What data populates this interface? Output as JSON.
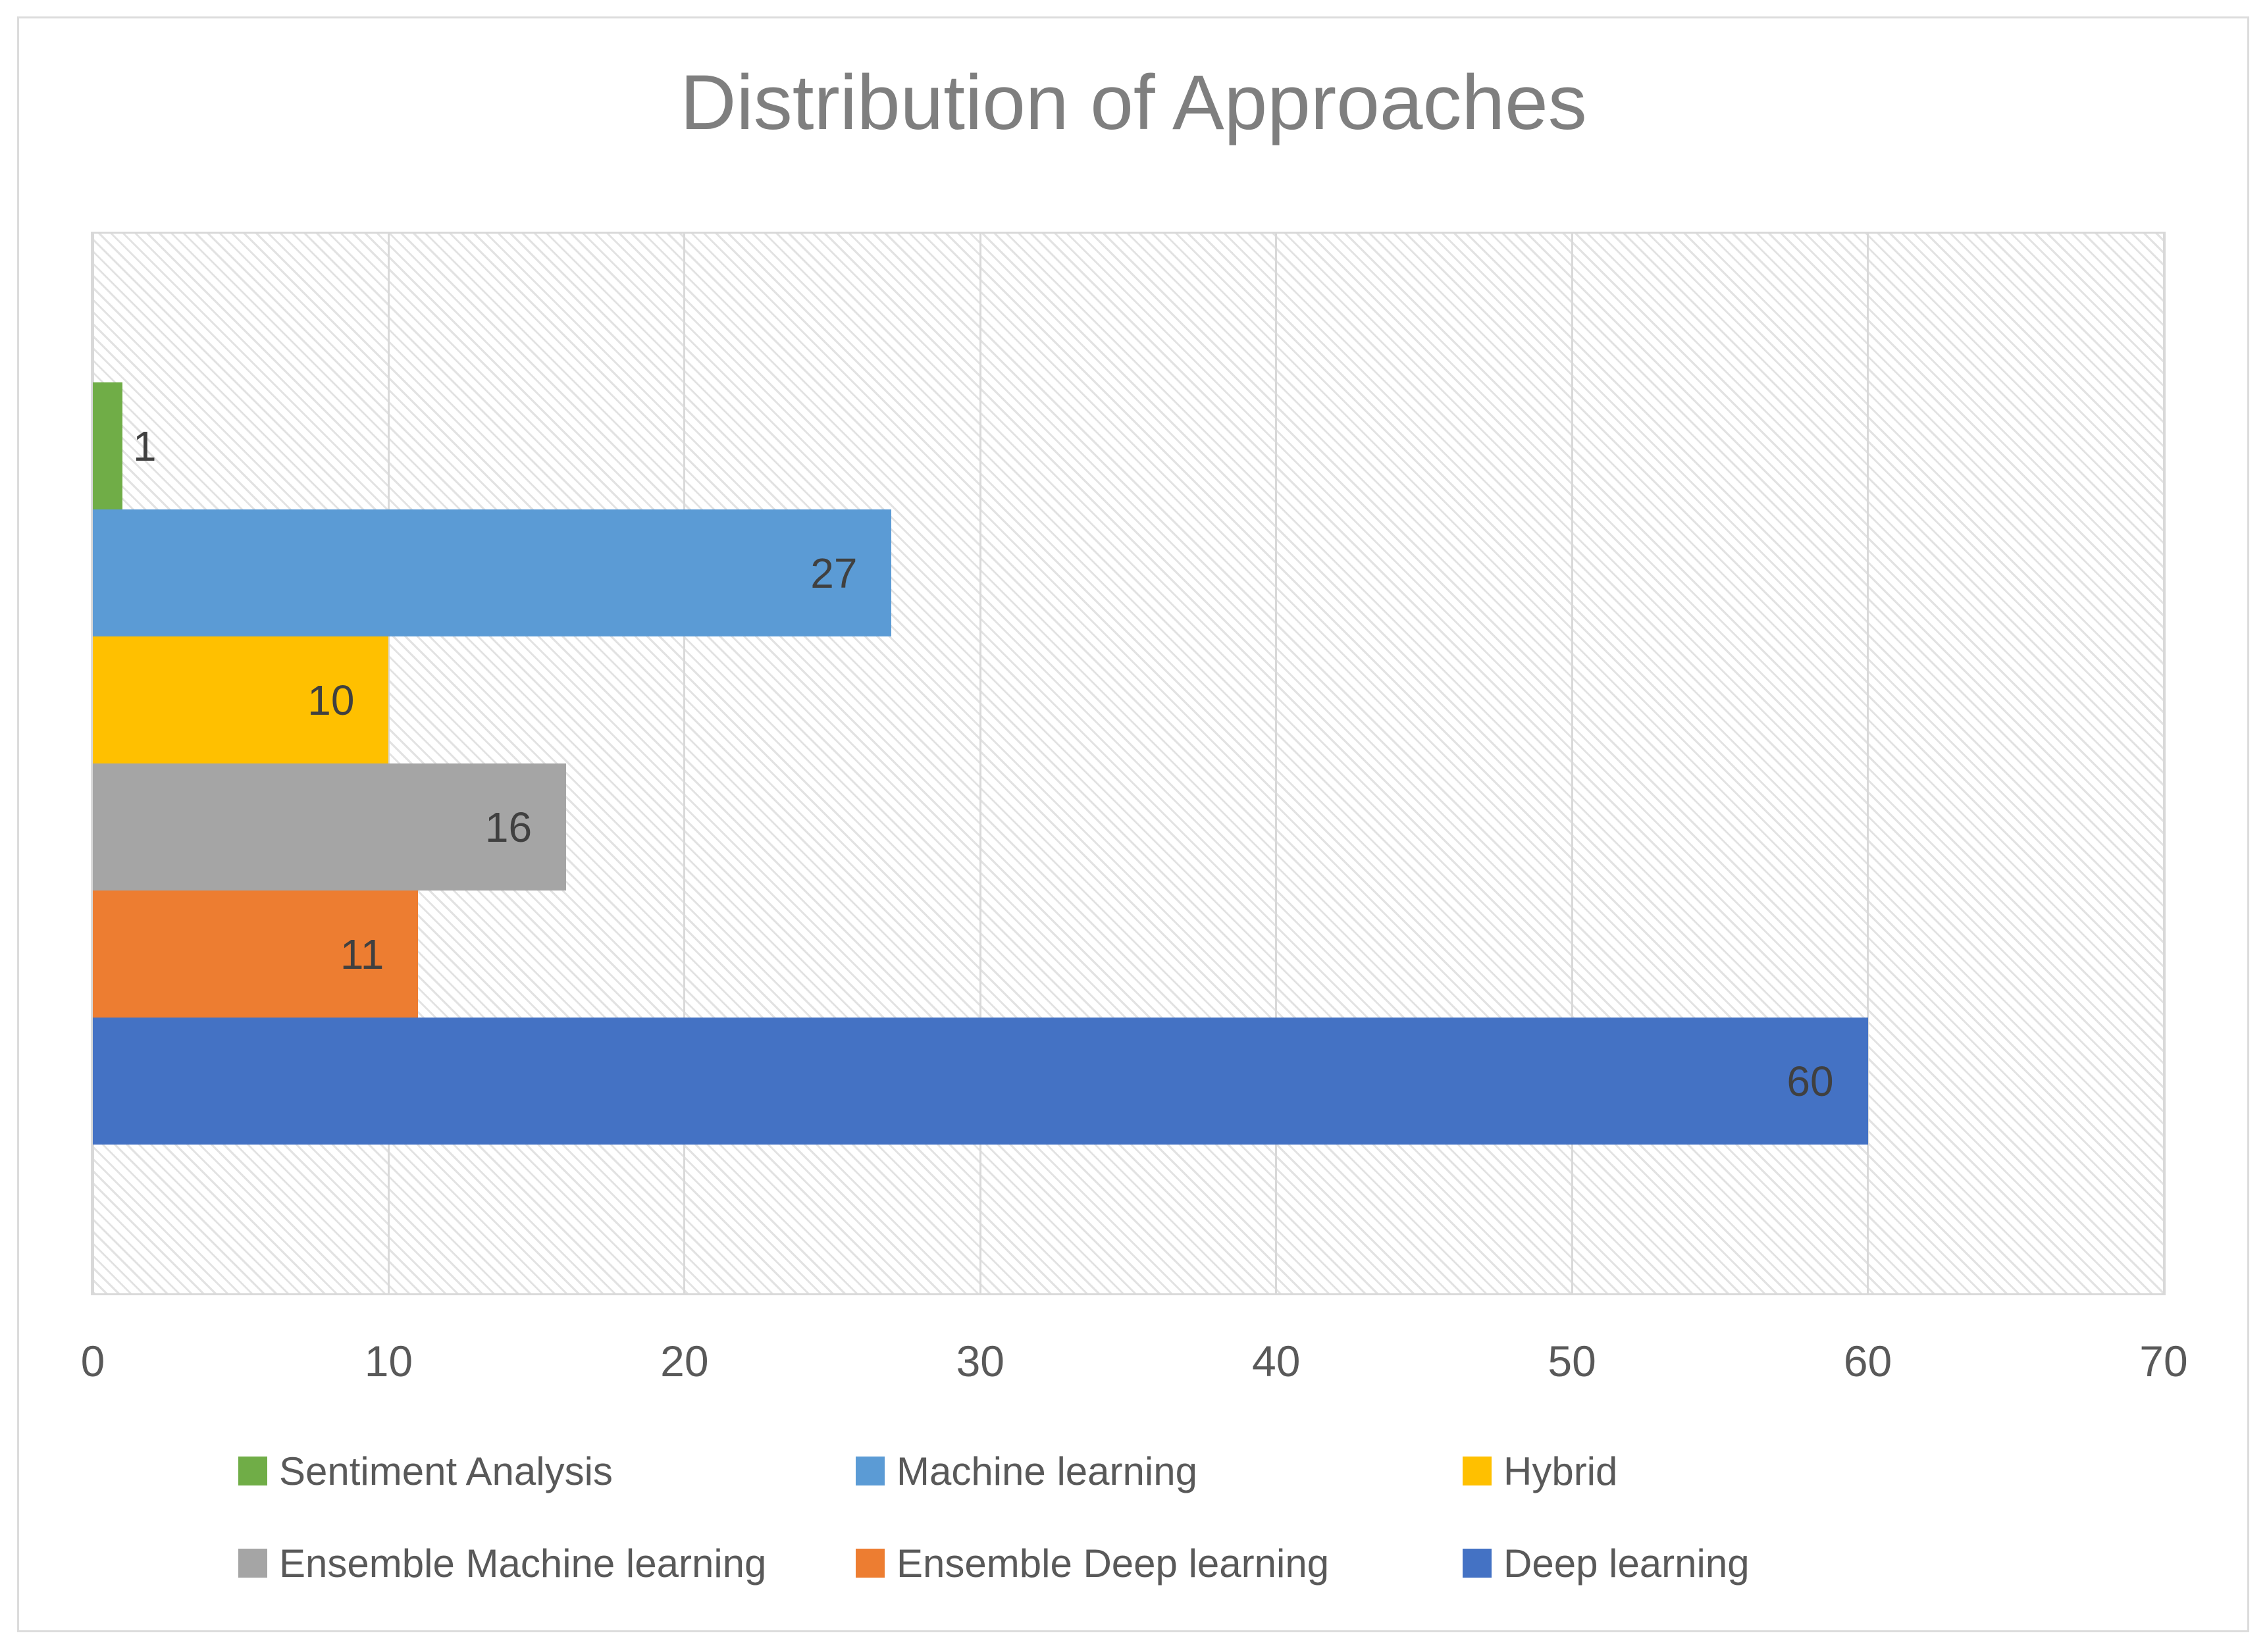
{
  "chart_data": {
    "type": "bar",
    "orientation": "horizontal",
    "title": "Distribution of Approaches",
    "series": [
      {
        "name": "Sentiment Analysis",
        "value": 1,
        "color": "#70AD47"
      },
      {
        "name": "Machine learning",
        "value": 27,
        "color": "#5B9BD5"
      },
      {
        "name": "Hybrid",
        "value": 10,
        "color": "#FFC000"
      },
      {
        "name": "Ensemble Machine learning",
        "value": 16,
        "color": "#A5A5A5"
      },
      {
        "name": "Ensemble Deep learning",
        "value": 11,
        "color": "#ED7D31"
      },
      {
        "name": "Deep learning",
        "value": 60,
        "color": "#4472C4"
      }
    ],
    "bar_order_top_to_bottom": [
      "Sentiment Analysis",
      "Machine learning",
      "Hybrid",
      "Ensemble Machine learning",
      "Ensemble Deep learning",
      "Deep learning"
    ],
    "xlim": [
      0,
      70
    ],
    "x_ticks": [
      "0",
      "10",
      "20",
      "30",
      "40",
      "50",
      "60",
      "70"
    ],
    "grid": true,
    "plot_background": "light-gray diagonal hatch",
    "data_label_position": "inside end (outside for value 1)",
    "legend_position": "bottom, two rows of three items",
    "legend_rows": [
      [
        "Sentiment Analysis",
        "Machine learning",
        "Hybrid"
      ],
      [
        "Ensemble Machine learning",
        "Ensemble Deep learning",
        "Deep learning"
      ]
    ]
  },
  "style": {
    "title_color": "#7f7f7f",
    "tick_label_color": "#595959",
    "data_label_color": "#404040",
    "legend_text_color": "#595959",
    "axis_and_grid_color": "#d9d9d9",
    "hatch_stripe_color": "#e2e2e2",
    "frame_border_color": "#dcdcdc"
  }
}
